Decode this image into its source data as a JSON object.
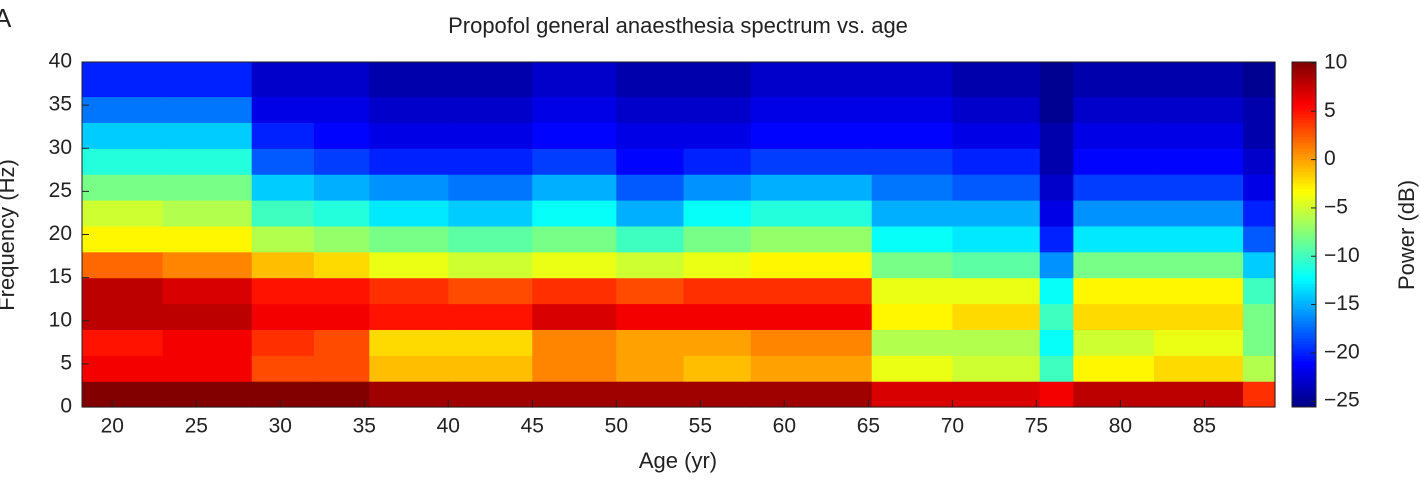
{
  "chart_data": {
    "type": "heatmap",
    "panel_label": "A",
    "title": "Propofol general anaesthesia spectrum vs. age",
    "x_label": "Age (yr)",
    "y_label": "Frequency (Hz)",
    "colorbar_label": "Power (dB)",
    "colormap": "jet",
    "xlim": [
      18.2,
      89.2
    ],
    "ylim": [
      0,
      40
    ],
    "clim": [
      -25.6,
      10.1
    ],
    "xticks": [
      20,
      25,
      30,
      35,
      40,
      45,
      50,
      55,
      60,
      65,
      70,
      75,
      80,
      85
    ],
    "yticks": [
      0,
      5,
      10,
      15,
      20,
      25,
      30,
      35,
      40
    ],
    "cticks": [
      10,
      5,
      0,
      {
        "value": -5,
        "label": "−5"
      },
      {
        "value": -10,
        "label": "−10"
      },
      {
        "value": -15,
        "label": "−15"
      },
      {
        "value": -20,
        "label": "−20"
      },
      {
        "value": -25,
        "label": "−25"
      }
    ],
    "x_bins": [
      18.2,
      23,
      28.3,
      32,
      35.3,
      40,
      45,
      50,
      54,
      58,
      65.2,
      70,
      75.2,
      77.2,
      82,
      87.3,
      89.2
    ],
    "y_bins": [
      0,
      3,
      6,
      9,
      12,
      15,
      18,
      21,
      24,
      27,
      30,
      33,
      36,
      40
    ],
    "z": [
      [
        10,
        6,
        5,
        8,
        8,
        2,
        -3,
        -5,
        -8,
        -11,
        -14,
        -17,
        -20
      ],
      [
        10,
        6,
        6,
        8,
        7,
        1,
        -3,
        -6,
        -8,
        -11,
        -14,
        -17,
        -20
      ],
      [
        10,
        3,
        4,
        6,
        5,
        -1,
        -6,
        -10,
        -14,
        -18,
        -20,
        -22,
        -23
      ],
      [
        10,
        3,
        3,
        6,
        5,
        -2,
        -7,
        -11,
        -15,
        -19,
        -21,
        -22,
        -23
      ],
      [
        9,
        -1,
        -2,
        5,
        4,
        -4,
        -8,
        -13,
        -16,
        -20,
        -22,
        -23,
        -24
      ],
      [
        9,
        -1,
        -2,
        5,
        3,
        -5,
        -9,
        -14,
        -17,
        -20,
        -22,
        -23,
        -24
      ],
      [
        9,
        1,
        1,
        7,
        4,
        -4,
        -8,
        -12,
        -15,
        -19,
        -21,
        -22,
        -23
      ],
      [
        9,
        0,
        0,
        6,
        3,
        -5,
        -10,
        -15,
        -18,
        -21,
        -22,
        -23,
        -24
      ],
      [
        9,
        -1,
        0,
        6,
        4,
        -4,
        -8,
        -12,
        -16,
        -20,
        -22,
        -23,
        -24
      ],
      [
        9,
        0,
        1,
        6,
        4,
        -3,
        -7,
        -11,
        -15,
        -19,
        -21,
        -22,
        -23
      ],
      [
        7,
        -4,
        -6,
        -3,
        -4,
        -8,
        -12,
        -15,
        -17,
        -19,
        -21,
        -22,
        -23
      ],
      [
        7,
        -5,
        -6,
        -2,
        -4,
        -9,
        -13,
        -15,
        -18,
        -20,
        -22,
        -23,
        -24
      ],
      [
        6,
        -10,
        -12,
        -10,
        -12,
        -16,
        -20,
        -22,
        -23,
        -24,
        -24,
        -25,
        -25
      ],
      [
        8,
        -3,
        -5,
        -2,
        -3,
        -8,
        -13,
        -16,
        -19,
        -21,
        -22,
        -23,
        -24
      ],
      [
        8,
        -2,
        -4,
        -2,
        -3,
        -8,
        -13,
        -16,
        -19,
        -21,
        -22,
        -23,
        -24
      ],
      [
        4,
        -6,
        -8,
        -8,
        -10,
        -14,
        -18,
        -20,
        -22,
        -23,
        -24,
        -24,
        -25
      ]
    ]
  }
}
